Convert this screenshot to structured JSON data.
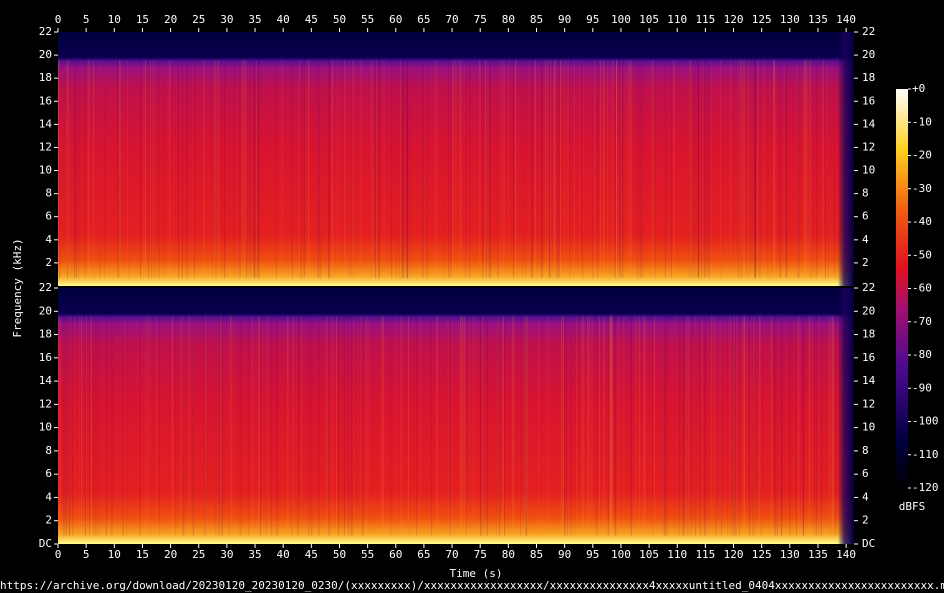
{
  "chart_data": [
    {
      "type": "spectrogram",
      "xlim": [
        0,
        141.4
      ],
      "xticks": [
        0,
        5,
        10,
        15,
        20,
        25,
        30,
        35,
        40,
        45,
        50,
        55,
        60,
        65,
        70,
        75,
        80,
        85,
        90,
        95,
        100,
        105,
        110,
        115,
        120,
        125,
        130,
        135,
        140
      ],
      "ylim": [
        0,
        22
      ],
      "yticks": [
        2,
        4,
        6,
        8,
        10,
        12,
        14,
        16,
        18,
        20,
        22
      ]
    },
    {
      "type": "spectrogram",
      "xlim": [
        0,
        141.4
      ],
      "xticks": [
        0,
        5,
        10,
        15,
        20,
        25,
        30,
        35,
        40,
        45,
        50,
        55,
        60,
        65,
        70,
        75,
        80,
        85,
        90,
        95,
        100,
        105,
        110,
        115,
        120,
        125,
        130,
        135,
        140
      ],
      "ylim": [
        0,
        22
      ],
      "yticks": [
        {
          "value": 0,
          "label": "DC"
        },
        2,
        4,
        6,
        8,
        10,
        12,
        14,
        16,
        18,
        20,
        22
      ]
    }
  ],
  "xlabel": "Time (s)",
  "ylabel": "Frequency (kHz)",
  "colorbar": {
    "label": "dBFS",
    "lim": [
      -120,
      0
    ],
    "ticks": [
      {
        "value": 0,
        "label": "+0"
      },
      -10,
      -20,
      -30,
      -40,
      -50,
      -60,
      -70,
      -80,
      -90,
      -100,
      -110,
      -120
    ]
  },
  "source": "https://archive.org/download/20230120_20230120_0230/(xxxxxxxxx)/xxxxxxxxxxxxxxxxxx/xxxxxxxxxxxxxxx4xxxxxuntitled_0404xxxxxxxxxxxxxxxxxxxxxxxx.mp3"
}
